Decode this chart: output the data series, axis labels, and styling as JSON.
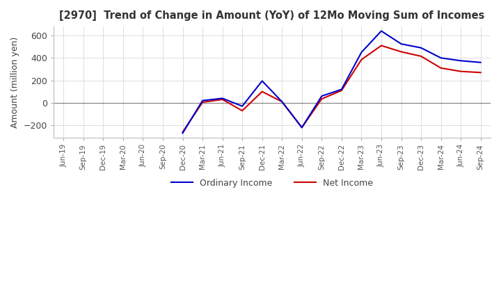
{
  "title": "[2970]  Trend of Change in Amount (YoY) of 12Mo Moving Sum of Incomes",
  "ylabel": "Amount (million yen)",
  "ylim": [
    -310,
    680
  ],
  "yticks": [
    -200,
    0,
    200,
    400,
    600
  ],
  "background_color": "#ffffff",
  "ordinary_income_color": "#0000cc",
  "net_income_color": "#cc0000",
  "x_labels": [
    "Jun-19",
    "Sep-19",
    "Dec-19",
    "Mar-20",
    "Jun-20",
    "Sep-20",
    "Dec-20",
    "Mar-21",
    "Jun-21",
    "Sep-21",
    "Dec-21",
    "Mar-22",
    "Jun-22",
    "Sep-22",
    "Dec-22",
    "Mar-23",
    "Jun-23",
    "Sep-23",
    "Dec-23",
    "Mar-24",
    "Jun-24",
    "Sep-24"
  ],
  "ordinary_income": [
    null,
    null,
    null,
    null,
    null,
    null,
    -270,
    20,
    40,
    -30,
    195,
    10,
    -220,
    60,
    120,
    450,
    640,
    525,
    490,
    400,
    375,
    360
  ],
  "net_income": [
    null,
    null,
    null,
    null,
    null,
    null,
    -260,
    5,
    30,
    -70,
    100,
    10,
    -220,
    35,
    110,
    385,
    510,
    455,
    415,
    310,
    280,
    270
  ]
}
